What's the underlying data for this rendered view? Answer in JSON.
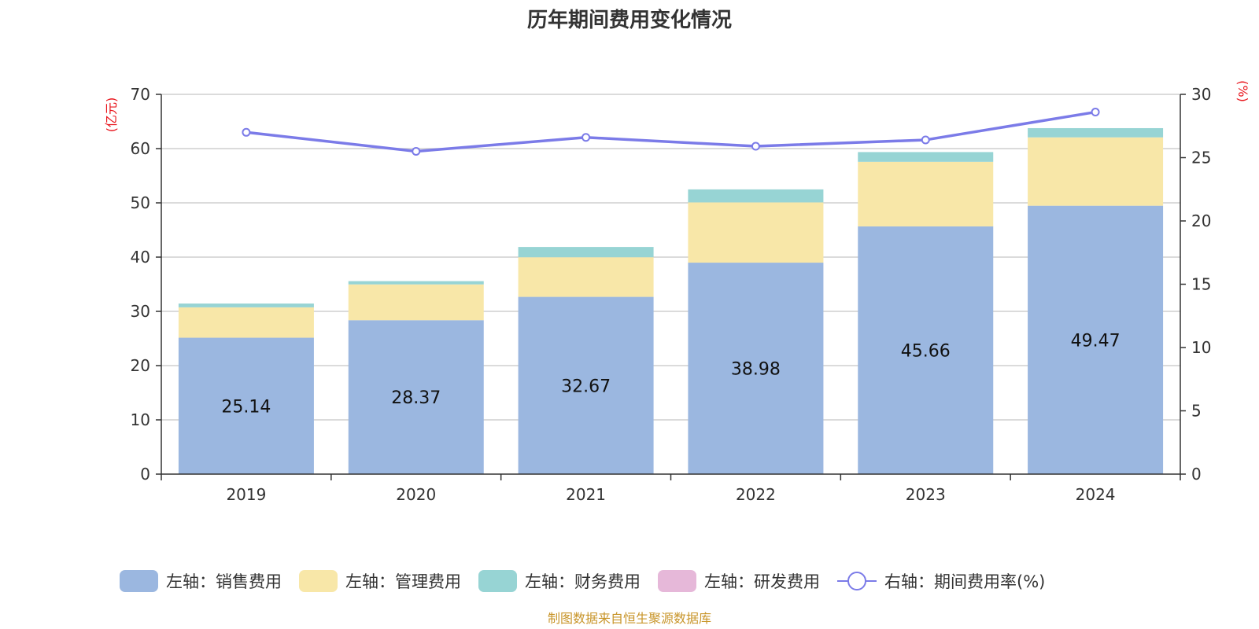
{
  "chart_data": {
    "type": "bar",
    "title": "历年期间费用变化情况",
    "categories": [
      "2019",
      "2020",
      "2021",
      "2022",
      "2023",
      "2024"
    ],
    "left_axis": {
      "unit": "(亿元)",
      "ylim": [
        0,
        70
      ],
      "ticks": [
        "0",
        "10",
        "20",
        "30",
        "40",
        "50",
        "60",
        "70"
      ]
    },
    "right_axis": {
      "unit": "(%)",
      "ylim": [
        0,
        30
      ],
      "ticks": [
        "0",
        "5",
        "10",
        "15",
        "20",
        "25",
        "30"
      ]
    },
    "series": [
      {
        "name": "左轴：销售费用",
        "type": "bar",
        "axis": "left",
        "color": "#9bb7e0",
        "values": [
          25.14,
          28.37,
          32.67,
          38.98,
          45.66,
          49.47
        ],
        "labels": [
          "25.14",
          "28.37",
          "32.67",
          "38.98",
          "45.66",
          "49.47"
        ]
      },
      {
        "name": "左轴：管理费用",
        "type": "bar",
        "axis": "left",
        "color": "#f8e7a8",
        "values": [
          5.6,
          6.6,
          7.3,
          11.1,
          11.9,
          12.6
        ]
      },
      {
        "name": "左轴：财务费用",
        "type": "bar",
        "axis": "left",
        "color": "#97d4d4",
        "values": [
          0.7,
          0.6,
          1.9,
          2.4,
          1.8,
          1.7
        ]
      },
      {
        "name": "左轴：研发费用",
        "type": "bar",
        "axis": "left",
        "color": "#e6b8d9",
        "values": [
          0,
          0,
          0,
          0,
          0,
          0
        ]
      },
      {
        "name": "右轴：期间费用率(%)",
        "type": "line",
        "axis": "right",
        "color": "#7b7be8",
        "values": [
          27.0,
          25.5,
          26.6,
          25.9,
          26.4,
          28.6
        ]
      }
    ],
    "grid": true,
    "legend_position": "bottom",
    "source": "制图数据来自恒生聚源数据库"
  }
}
